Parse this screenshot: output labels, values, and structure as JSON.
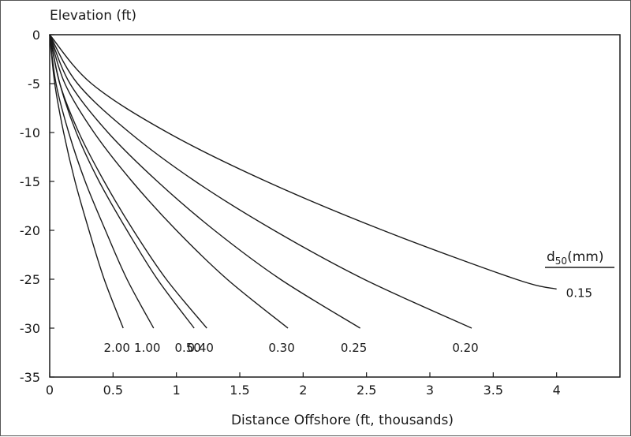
{
  "chart_data": {
    "type": "line",
    "title": "",
    "xlabel": "Distance Offshore (ft, thousands)",
    "ylabel": "Elevation (ft)",
    "xlim": [
      0,
      4.5
    ],
    "ylim": [
      -35,
      0
    ],
    "x_ticks": [
      "0",
      "0.5",
      "1",
      "1.5",
      "2",
      "2.5",
      "3",
      "3.5",
      "4"
    ],
    "y_ticks": [
      "0",
      "-5",
      "-10",
      "-15",
      "-20",
      "-25",
      "-30",
      "-35"
    ],
    "grid": false,
    "legend_title": {
      "main": "d",
      "sub": "50",
      "unit": "(mm)"
    },
    "series": [
      {
        "name": "0.15",
        "x_end": 4.0,
        "y_end": -26,
        "y": [
          0,
          -5,
          -10,
          -15,
          -20,
          -25,
          -26
        ],
        "x": [
          0.0,
          0.33,
          0.93,
          1.71,
          2.63,
          3.68,
          4.0
        ]
      },
      {
        "name": "0.20",
        "x_end": 3.33,
        "y_end": -30,
        "y": [
          0,
          -5,
          -10,
          -15,
          -20,
          -25,
          -30
        ],
        "x": [
          0.0,
          0.22,
          0.63,
          1.15,
          1.77,
          2.48,
          3.33
        ]
      },
      {
        "name": "0.25",
        "x_end": 2.45,
        "y_end": -30,
        "y": [
          0,
          -5,
          -10,
          -15,
          -20,
          -25,
          -30
        ],
        "x": [
          0.0,
          0.16,
          0.46,
          0.85,
          1.3,
          1.82,
          2.45
        ]
      },
      {
        "name": "0.30",
        "x_end": 1.88,
        "y_end": -30,
        "y": [
          0,
          -5,
          -10,
          -15,
          -20,
          -25,
          -30
        ],
        "x": [
          0.0,
          0.12,
          0.35,
          0.65,
          1.0,
          1.4,
          1.88
        ]
      },
      {
        "name": "0.40",
        "x_end": 1.24,
        "y_end": -30,
        "y": [
          0,
          -5,
          -10,
          -15,
          -20,
          -25,
          -30
        ],
        "x": [
          0.0,
          0.08,
          0.23,
          0.43,
          0.66,
          0.92,
          1.24
        ]
      },
      {
        "name": "0.50",
        "x_end": 1.14,
        "y_end": -30,
        "y": [
          0,
          -5,
          -10,
          -15,
          -20,
          -25,
          -30
        ],
        "x": [
          0.0,
          0.08,
          0.21,
          0.39,
          0.61,
          0.85,
          1.14
        ]
      },
      {
        "name": "1.00",
        "x_end": 0.82,
        "y_end": -30,
        "y": [
          0,
          -5,
          -10,
          -15,
          -20,
          -25,
          -30
        ],
        "x": [
          0.0,
          0.05,
          0.15,
          0.28,
          0.44,
          0.61,
          0.82
        ]
      },
      {
        "name": "2.00",
        "x_end": 0.58,
        "y_end": -30,
        "y": [
          0,
          -5,
          -10,
          -15,
          -20,
          -25,
          -30
        ],
        "x": [
          0.0,
          0.04,
          0.11,
          0.2,
          0.31,
          0.43,
          0.58
        ]
      }
    ]
  }
}
